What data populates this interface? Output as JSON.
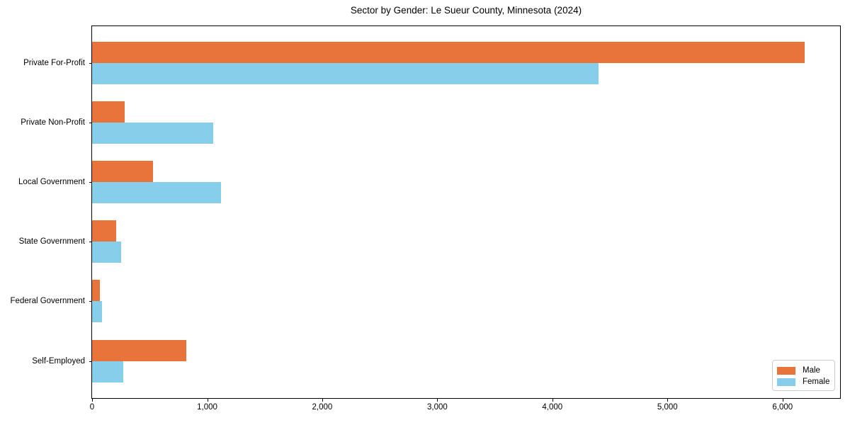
{
  "chart_data": {
    "type": "bar",
    "orientation": "horizontal",
    "title": "Sector by Gender: Le Sueur County, Minnesota (2024)",
    "categories": [
      "Private For-Profit",
      "Private Non-Profit",
      "Local Government",
      "State Government",
      "Federal Government",
      "Self-Employed"
    ],
    "series": [
      {
        "name": "Male",
        "color": "#e8743b",
        "values": [
          6190,
          280,
          530,
          210,
          65,
          820
        ]
      },
      {
        "name": "Female",
        "color": "#87ceeb",
        "values": [
          4400,
          1050,
          1120,
          250,
          85,
          270
        ]
      }
    ],
    "xlabel": "",
    "ylabel": "",
    "xlim": [
      0,
      6500
    ],
    "xticks": [
      0,
      1000,
      2000,
      3000,
      4000,
      5000,
      6000
    ],
    "xtick_labels": [
      "0",
      "1,000",
      "2,000",
      "3,000",
      "4,000",
      "5,000",
      "6,000"
    ],
    "grid": false,
    "legend": {
      "position": "lower right",
      "entries": [
        "Male",
        "Female"
      ]
    },
    "colors": {
      "male": "#e8743b",
      "female": "#87ceeb",
      "spine": "#000000",
      "legend_border": "#cccccc",
      "background": "#ffffff"
    }
  }
}
